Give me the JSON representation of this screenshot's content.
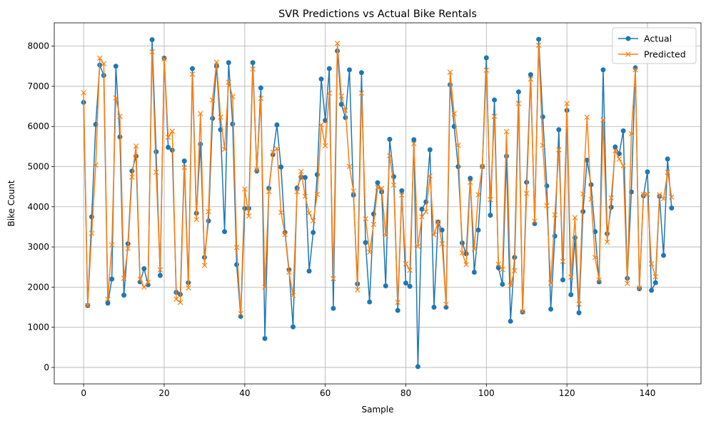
{
  "chart_data": {
    "type": "line",
    "title": "SVR Predictions vs Actual Bike Rentals",
    "xlabel": "Sample",
    "ylabel": "Bike Count",
    "xlim": [
      -7.3,
      153.3
    ],
    "ylim": [
      -410,
      8580
    ],
    "xticks": [
      0,
      20,
      40,
      60,
      80,
      100,
      120,
      140
    ],
    "yticks": [
      0,
      1000,
      2000,
      3000,
      4000,
      5000,
      6000,
      7000,
      8000
    ],
    "grid": true,
    "legend_position": "top-right",
    "series": [
      {
        "name": "Actual",
        "color": "#1f77b4",
        "marker": "circle",
        "values": [
          6600,
          1540,
          3750,
          6050,
          7530,
          7270,
          1600,
          2200,
          7500,
          5740,
          1800,
          3080,
          4890,
          5260,
          2130,
          2460,
          2060,
          8160,
          5370,
          2290,
          7700,
          5480,
          5410,
          1870,
          1820,
          5140,
          2110,
          7440,
          3840,
          5560,
          2740,
          3650,
          6200,
          7500,
          5920,
          3380,
          7590,
          6060,
          2560,
          1270,
          3960,
          3960,
          7590,
          4890,
          6960,
          720,
          4460,
          5300,
          6040,
          4990,
          3360,
          2430,
          1010,
          4470,
          4740,
          4730,
          2400,
          3360,
          4800,
          7180,
          6150,
          7440,
          1470,
          7880,
          6550,
          6220,
          7410,
          4290,
          2080,
          7340,
          3110,
          1630,
          3820,
          4600,
          4370,
          2030,
          5680,
          4750,
          1420,
          4400,
          2100,
          2020,
          5670,
          20,
          3940,
          4120,
          5420,
          1500,
          3620,
          3420,
          1500,
          7040,
          6000,
          5000,
          3100,
          2830,
          4710,
          2370,
          3420,
          5000,
          7710,
          3790,
          6660,
          2480,
          2070,
          5260,
          1150,
          2740,
          6860,
          1380,
          4610,
          7290,
          3580,
          8170,
          6240,
          4520,
          1450,
          3270,
          5920,
          2180,
          6400,
          1810,
          3230,
          1360,
          3880,
          5160,
          4550,
          3380,
          2130,
          7410,
          3330,
          3990,
          5490,
          5320,
          5890,
          2220,
          4370,
          7460,
          1960,
          4270,
          4870,
          1920,
          2110,
          4260,
          2790,
          5190,
          3970
        ]
      },
      {
        "name": "Predicted",
        "color": "#ff7f0e",
        "marker": "x",
        "values": [
          6840,
          1540,
          3340,
          5040,
          7700,
          7560,
          1700,
          3050,
          6710,
          6250,
          2220,
          2960,
          4740,
          5510,
          2200,
          2000,
          2120,
          7860,
          4860,
          2430,
          7680,
          5730,
          5880,
          1700,
          1620,
          4980,
          1980,
          7300,
          3680,
          6320,
          2540,
          3880,
          6660,
          7600,
          6230,
          5430,
          7100,
          6740,
          2990,
          1340,
          4440,
          3770,
          7430,
          4920,
          6700,
          2000,
          4380,
          5360,
          5450,
          3860,
          3310,
          2370,
          1790,
          4370,
          4880,
          4260,
          3840,
          3650,
          4310,
          6040,
          5520,
          6830,
          2210,
          8070,
          6760,
          6400,
          5000,
          4390,
          1930,
          6830,
          3700,
          2870,
          3560,
          4480,
          4460,
          3290,
          5270,
          4540,
          1620,
          4290,
          2580,
          2420,
          5570,
          3010,
          3750,
          3880,
          4770,
          3300,
          3620,
          3080,
          1570,
          7350,
          6320,
          5530,
          2850,
          2560,
          4610,
          2950,
          4300,
          5000,
          7400,
          4180,
          6250,
          2570,
          2440,
          5870,
          2040,
          2410,
          6570,
          1390,
          4330,
          7180,
          3640,
          8020,
          5530,
          4030,
          2100,
          3800,
          5420,
          2640,
          6570,
          2250,
          3730,
          1580,
          4320,
          6230,
          4190,
          2740,
          2180,
          6160,
          3120,
          4220,
          5400,
          5190,
          5020,
          2090,
          5820,
          7410,
          1980,
          4310,
          4310,
          2580,
          2260,
          4300,
          4200,
          4860,
          4240
        ]
      }
    ]
  }
}
